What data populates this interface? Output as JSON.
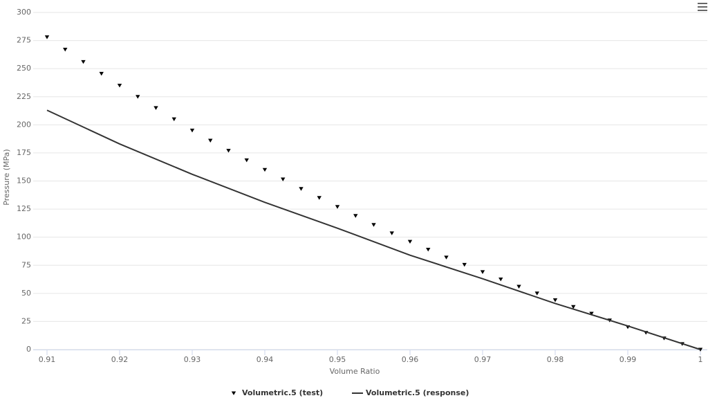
{
  "chart_data": {
    "type": "line",
    "x_label": "Volume Ratio",
    "y_label": "Pressure (MPa)",
    "xlim": [
      0.91,
      1
    ],
    "xticks": [
      0.91,
      0.92,
      0.93,
      0.94,
      0.95,
      0.96,
      0.97,
      0.98,
      0.99,
      1
    ],
    "ylim": [
      0,
      300
    ],
    "yticks": [
      0,
      25,
      50,
      75,
      100,
      125,
      150,
      175,
      200,
      225,
      250,
      275,
      300
    ],
    "grid": true,
    "legend": "bottom",
    "series": [
      {
        "name": "Volumetric.5 (test)",
        "type": "scatter",
        "marker": "triangle-down",
        "color": "#000000",
        "x": [
          0.91,
          0.9125,
          0.915,
          0.9175,
          0.92,
          0.9225,
          0.925,
          0.9275,
          0.93,
          0.9325,
          0.935,
          0.9375,
          0.94,
          0.9425,
          0.945,
          0.9475,
          0.95,
          0.9525,
          0.955,
          0.9575,
          0.96,
          0.9625,
          0.965,
          0.9675,
          0.97,
          0.9725,
          0.975,
          0.9775,
          0.98,
          0.9825,
          0.985,
          0.9875,
          0.99,
          0.9925,
          0.995,
          0.9975,
          1
        ],
        "values": [
          278,
          267,
          256,
          245.5,
          235,
          225,
          215,
          205,
          195,
          186,
          177,
          168.5,
          160,
          151.5,
          143,
          135,
          127,
          119,
          111,
          103.5,
          96,
          89,
          82,
          75.5,
          69,
          62.5,
          56,
          50,
          44,
          38,
          32,
          26,
          20,
          15,
          10,
          5,
          0
        ]
      },
      {
        "name": "Volumetric.5 (response)",
        "type": "line",
        "color": "#333333",
        "x": [
          0.91,
          0.92,
          0.93,
          0.94,
          0.95,
          0.96,
          0.97,
          0.98,
          0.99,
          1
        ],
        "values": [
          213,
          183,
          156,
          131,
          108,
          84,
          63,
          41,
          21,
          0
        ]
      }
    ]
  }
}
